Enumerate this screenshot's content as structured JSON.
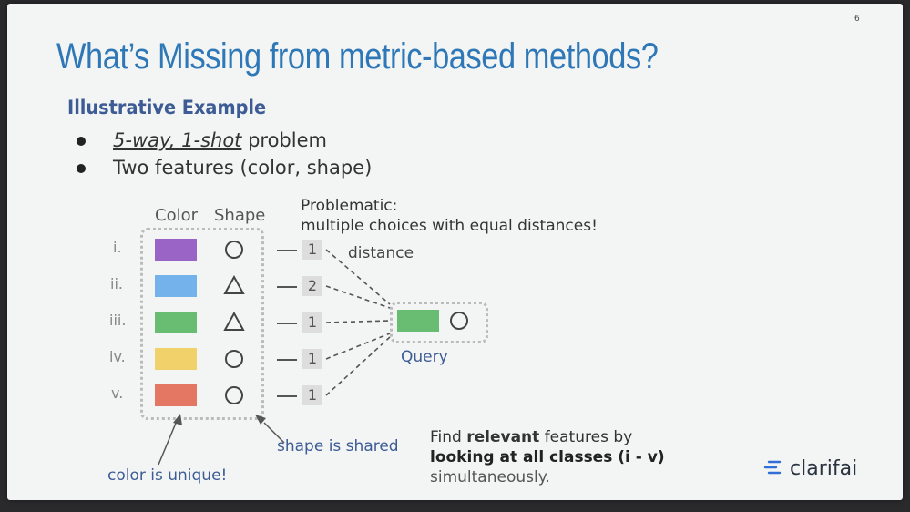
{
  "page_number": "6",
  "title": "What’s Missing from metric-based methods?",
  "subtitle": "Illustrative Example",
  "bullets": [
    {
      "pre": "",
      "underlined": "5-way, 1-shot",
      "post": " problem"
    },
    {
      "pre": "Two features (color, shape)",
      "underlined": "",
      "post": ""
    }
  ],
  "table": {
    "headers": [
      "Color",
      "Shape"
    ],
    "rows": [
      {
        "label": "i.",
        "color": "#9a63c6",
        "shape": "circle",
        "distance": "1"
      },
      {
        "label": "ii.",
        "color": "#73b2eb",
        "shape": "triangle",
        "distance": "2"
      },
      {
        "label": "iii.",
        "color": "#68bd72",
        "shape": "triangle",
        "distance": "1"
      },
      {
        "label": "iv.",
        "color": "#f0d16a",
        "shape": "circle",
        "distance": "1"
      },
      {
        "label": "v.",
        "color": "#e47664",
        "shape": "circle",
        "distance": "1"
      }
    ]
  },
  "problematic_title": "Problematic:",
  "problematic_text": "multiple choices with equal distances!",
  "distance_label": "distance",
  "query": {
    "label": "Query",
    "color": "#68bd72",
    "shape": "circle"
  },
  "shape_note": "shape is shared",
  "color_note": "color is unique!",
  "find_note": {
    "line1_pre": "Find ",
    "line1_bold": "relevant",
    "line1_post": " features by",
    "line2": "looking at all classes (i - v)",
    "line3": "simultaneously."
  },
  "logo": {
    "icon": "clarifai-logo-icon",
    "text": "clarifai"
  }
}
